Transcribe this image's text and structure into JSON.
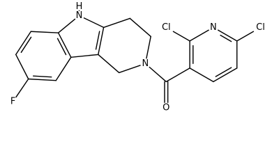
{
  "atoms": [
    "H",
    "N",
    "F",
    "N",
    "O",
    "Cl",
    "N",
    "Cl"
  ]
}
